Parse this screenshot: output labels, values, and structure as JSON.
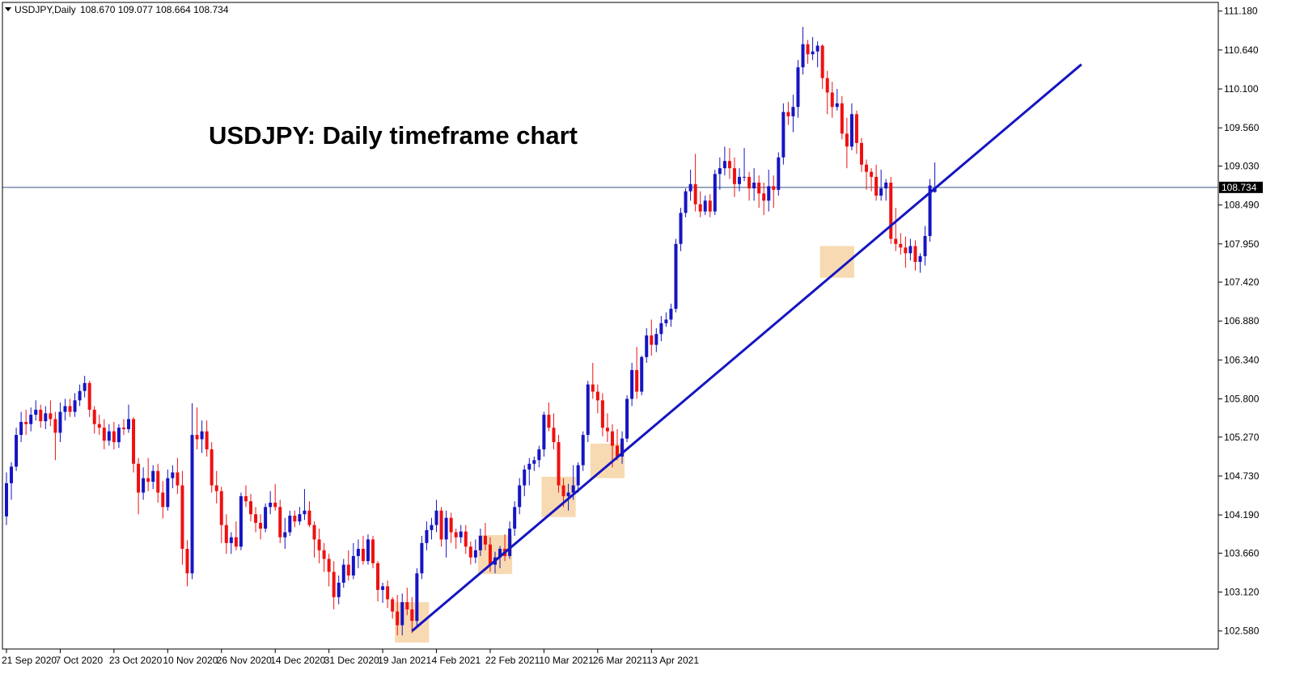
{
  "header": {
    "symbol": "USDJPY,Daily",
    "ohlc": "108.670 109.077 108.664 108.734"
  },
  "annotation": {
    "title": "USDJPY: Daily timeframe chart"
  },
  "colors": {
    "bull": "#1515c2",
    "bear": "#ee1111",
    "trendline": "#1515c2",
    "zone": "#f6d3a4",
    "current_price_line": "#33557e"
  },
  "chart_data": {
    "type": "candlestick",
    "title": "USDJPY: Daily timeframe chart",
    "symbol": "USDJPY",
    "timeframe": "Daily",
    "current_price": "108.734",
    "ylim": [
      102.33,
      111.3
    ],
    "y_ticks": [
      "111.180",
      "110.640",
      "110.100",
      "109.560",
      "109.030",
      "108.490",
      "107.950",
      "107.420",
      "106.880",
      "106.340",
      "105.800",
      "105.270",
      "104.730",
      "104.190",
      "103.660",
      "103.120",
      "102.580"
    ],
    "x_ticks": [
      "21 Sep 2020",
      "7 Oct 2020",
      "23 Oct 2020",
      "10 Nov 2020",
      "26 Nov 2020",
      "14 Dec 2020",
      "31 Dec 2020",
      "19 Jan 2021",
      "4 Feb 2021",
      "22 Feb 2021",
      "10 Mar 2021",
      "26 Mar 2021",
      "13 Apr 2021"
    ],
    "trendline": {
      "from": {
        "bar": 83,
        "price": 102.58
      },
      "to": {
        "bar": 220,
        "price": 110.44
      }
    },
    "zones": [
      {
        "from_bar": 80,
        "to_bar": 86,
        "low": 102.42,
        "high": 102.98
      },
      {
        "from_bar": 97,
        "to_bar": 103,
        "low": 103.37,
        "high": 103.91
      },
      {
        "from_bar": 110,
        "to_bar": 116,
        "low": 104.16,
        "high": 104.72
      },
      {
        "from_bar": 120,
        "to_bar": 126,
        "low": 104.7,
        "high": 105.18
      },
      {
        "from_bar": 167,
        "to_bar": 173,
        "low": 107.48,
        "high": 107.92
      }
    ],
    "candles": [
      [
        104.17,
        104.78,
        104.05,
        104.63
      ],
      [
        104.63,
        104.92,
        104.4,
        104.86
      ],
      [
        104.86,
        105.4,
        104.8,
        105.3
      ],
      [
        105.3,
        105.62,
        105.2,
        105.48
      ],
      [
        105.48,
        105.65,
        105.3,
        105.45
      ],
      [
        105.45,
        105.68,
        105.35,
        105.58
      ],
      [
        105.58,
        105.78,
        105.5,
        105.65
      ],
      [
        105.65,
        105.72,
        105.4,
        105.49
      ],
      [
        105.49,
        105.7,
        105.38,
        105.6
      ],
      [
        105.6,
        105.78,
        105.42,
        105.52
      ],
      [
        105.52,
        105.62,
        104.95,
        105.33
      ],
      [
        105.33,
        105.75,
        105.2,
        105.62
      ],
      [
        105.62,
        105.8,
        105.5,
        105.7
      ],
      [
        105.7,
        105.8,
        105.55,
        105.62
      ],
      [
        105.62,
        105.88,
        105.55,
        105.78
      ],
      [
        105.78,
        106.0,
        105.7,
        105.91
      ],
      [
        105.91,
        106.12,
        105.82,
        106.02
      ],
      [
        106.02,
        106.05,
        105.55,
        105.65
      ],
      [
        105.65,
        105.7,
        105.32,
        105.45
      ],
      [
        105.45,
        105.58,
        105.3,
        105.4
      ],
      [
        105.4,
        105.52,
        105.1,
        105.22
      ],
      [
        105.22,
        105.45,
        105.15,
        105.35
      ],
      [
        105.35,
        105.48,
        105.1,
        105.2
      ],
      [
        105.2,
        105.45,
        105.12,
        105.4
      ],
      [
        105.4,
        105.52,
        105.3,
        105.38
      ],
      [
        105.38,
        105.72,
        105.33,
        105.52
      ],
      [
        105.52,
        105.55,
        104.78,
        104.9
      ],
      [
        104.9,
        104.98,
        104.2,
        104.5
      ],
      [
        104.5,
        104.85,
        104.4,
        104.7
      ],
      [
        104.7,
        104.98,
        104.52,
        104.65
      ],
      [
        104.65,
        104.88,
        104.55,
        104.8
      ],
      [
        104.8,
        104.9,
        104.36,
        104.5
      ],
      [
        104.5,
        104.66,
        104.14,
        104.3
      ],
      [
        104.3,
        104.82,
        104.25,
        104.7
      ],
      [
        104.7,
        104.88,
        104.56,
        104.78
      ],
      [
        104.78,
        104.98,
        104.48,
        104.6
      ],
      [
        104.6,
        104.8,
        103.5,
        103.72
      ],
      [
        103.72,
        103.84,
        103.2,
        103.38
      ],
      [
        103.38,
        105.74,
        103.3,
        105.3
      ],
      [
        105.3,
        105.68,
        105.1,
        105.24
      ],
      [
        105.24,
        105.5,
        105.05,
        105.35
      ],
      [
        105.35,
        105.5,
        105.0,
        105.1
      ],
      [
        105.1,
        105.2,
        104.5,
        104.6
      ],
      [
        104.6,
        104.8,
        104.35,
        104.52
      ],
      [
        104.52,
        104.58,
        103.8,
        104.05
      ],
      [
        104.05,
        104.2,
        103.65,
        103.8
      ],
      [
        103.8,
        103.95,
        103.65,
        103.88
      ],
      [
        103.88,
        104.1,
        103.7,
        103.75
      ],
      [
        103.75,
        104.5,
        103.7,
        104.45
      ],
      [
        104.45,
        104.6,
        104.3,
        104.38
      ],
      [
        104.38,
        104.48,
        104.1,
        104.2
      ],
      [
        104.2,
        104.3,
        103.95,
        104.08
      ],
      [
        104.08,
        104.2,
        103.85,
        104.0
      ],
      [
        104.0,
        104.35,
        103.95,
        104.3
      ],
      [
        104.3,
        104.52,
        104.2,
        104.36
      ],
      [
        104.36,
        104.62,
        104.25,
        104.3
      ],
      [
        104.3,
        104.4,
        103.8,
        103.88
      ],
      [
        103.88,
        104.15,
        103.72,
        103.95
      ],
      [
        103.95,
        104.25,
        103.9,
        104.18
      ],
      [
        104.18,
        104.25,
        104.02,
        104.1
      ],
      [
        104.1,
        104.3,
        104.05,
        104.2
      ],
      [
        104.2,
        104.55,
        104.12,
        104.25
      ],
      [
        104.25,
        104.38,
        104.02,
        104.05
      ],
      [
        104.05,
        104.1,
        103.6,
        103.85
      ],
      [
        103.85,
        104.0,
        103.52,
        103.7
      ],
      [
        103.7,
        103.8,
        103.4,
        103.58
      ],
      [
        103.58,
        103.65,
        103.2,
        103.4
      ],
      [
        103.4,
        103.55,
        102.88,
        103.05
      ],
      [
        103.05,
        103.35,
        102.95,
        103.25
      ],
      [
        103.25,
        103.58,
        103.18,
        103.5
      ],
      [
        103.5,
        103.7,
        103.28,
        103.35
      ],
      [
        103.35,
        103.8,
        103.3,
        103.62
      ],
      [
        103.62,
        103.85,
        103.45,
        103.72
      ],
      [
        103.72,
        103.9,
        103.5,
        103.55
      ],
      [
        103.55,
        103.92,
        103.5,
        103.85
      ],
      [
        103.85,
        103.9,
        103.45,
        103.52
      ],
      [
        103.52,
        103.55,
        102.99,
        103.15
      ],
      [
        103.15,
        103.25,
        102.97,
        103.2
      ],
      [
        103.2,
        103.28,
        102.9,
        103.02
      ],
      [
        103.02,
        103.05,
        102.75,
        102.85
      ],
      [
        102.85,
        103.08,
        102.52,
        102.66
      ],
      [
        102.66,
        103.1,
        102.52,
        102.98
      ],
      [
        102.98,
        103.18,
        102.8,
        102.88
      ],
      [
        102.88,
        103.05,
        102.55,
        102.72
      ],
      [
        102.72,
        103.45,
        102.65,
        103.38
      ],
      [
        103.38,
        103.9,
        103.3,
        103.8
      ],
      [
        103.8,
        104.1,
        103.7,
        103.98
      ],
      [
        103.98,
        104.15,
        103.85,
        104.05
      ],
      [
        104.05,
        104.4,
        103.95,
        104.25
      ],
      [
        104.25,
        104.3,
        103.75,
        103.85
      ],
      [
        103.85,
        104.25,
        103.6,
        104.15
      ],
      [
        104.15,
        104.22,
        103.8,
        103.95
      ],
      [
        103.95,
        104.0,
        103.72,
        103.88
      ],
      [
        103.88,
        104.05,
        103.8,
        103.96
      ],
      [
        103.96,
        104.05,
        103.65,
        103.75
      ],
      [
        103.75,
        103.82,
        103.5,
        103.6
      ],
      [
        103.6,
        103.85,
        103.52,
        103.7
      ],
      [
        103.7,
        104.0,
        103.62,
        103.9
      ],
      [
        103.9,
        104.08,
        103.7,
        103.78
      ],
      [
        103.78,
        103.88,
        103.4,
        103.5
      ],
      [
        103.5,
        103.68,
        103.38,
        103.6
      ],
      [
        103.6,
        103.76,
        103.45,
        103.72
      ],
      [
        103.72,
        103.92,
        103.55,
        103.62
      ],
      [
        103.62,
        104.1,
        103.58,
        104.0
      ],
      [
        104.0,
        104.38,
        103.9,
        104.3
      ],
      [
        104.3,
        104.7,
        104.2,
        104.6
      ],
      [
        104.6,
        104.88,
        104.45,
        104.82
      ],
      [
        104.82,
        104.98,
        104.6,
        104.9
      ],
      [
        104.9,
        105.0,
        104.8,
        104.95
      ],
      [
        104.95,
        105.15,
        104.85,
        105.1
      ],
      [
        105.1,
        105.62,
        105.0,
        105.58
      ],
      [
        105.58,
        105.75,
        105.35,
        105.4
      ],
      [
        105.4,
        105.6,
        105.1,
        105.2
      ],
      [
        105.2,
        105.3,
        104.5,
        104.6
      ],
      [
        104.6,
        104.7,
        104.3,
        104.45
      ],
      [
        104.45,
        104.62,
        104.25,
        104.5
      ],
      [
        104.5,
        104.88,
        104.4,
        104.6
      ],
      [
        104.6,
        104.92,
        104.5,
        104.88
      ],
      [
        104.88,
        105.35,
        104.8,
        105.3
      ],
      [
        105.3,
        106.05,
        105.2,
        106.0
      ],
      [
        106.0,
        106.3,
        105.8,
        105.9
      ],
      [
        105.9,
        106.0,
        105.6,
        105.78
      ],
      [
        105.78,
        105.88,
        105.28,
        105.4
      ],
      [
        105.4,
        105.6,
        105.2,
        105.35
      ],
      [
        105.35,
        105.45,
        104.85,
        105.15
      ],
      [
        105.15,
        105.38,
        104.95,
        105.0
      ],
      [
        105.0,
        105.35,
        104.9,
        105.25
      ],
      [
        105.25,
        105.85,
        105.2,
        105.8
      ],
      [
        105.8,
        106.3,
        105.7,
        106.2
      ],
      [
        106.2,
        106.52,
        105.8,
        105.9
      ],
      [
        105.9,
        106.4,
        105.85,
        106.38
      ],
      [
        106.38,
        106.78,
        106.3,
        106.68
      ],
      [
        106.68,
        106.9,
        106.4,
        106.55
      ],
      [
        106.55,
        106.78,
        106.45,
        106.7
      ],
      [
        106.7,
        106.95,
        106.6,
        106.85
      ],
      [
        106.85,
        107.0,
        106.8,
        106.9
      ],
      [
        106.9,
        107.12,
        106.8,
        107.05
      ],
      [
        107.05,
        108.02,
        107.0,
        107.95
      ],
      [
        107.95,
        108.45,
        107.85,
        108.38
      ],
      [
        108.38,
        108.72,
        108.32,
        108.68
      ],
      [
        108.68,
        108.98,
        108.55,
        108.78
      ],
      [
        108.78,
        109.2,
        108.4,
        108.5
      ],
      [
        108.5,
        108.68,
        108.32,
        108.4
      ],
      [
        108.4,
        108.62,
        108.35,
        108.55
      ],
      [
        108.55,
        108.64,
        108.32,
        108.4
      ],
      [
        108.4,
        108.98,
        108.35,
        108.92
      ],
      [
        108.92,
        109.15,
        108.7,
        109.0
      ],
      [
        109.0,
        109.3,
        108.9,
        109.1
      ],
      [
        109.1,
        109.28,
        108.85,
        109.0
      ],
      [
        109.0,
        109.15,
        108.6,
        108.78
      ],
      [
        108.78,
        109.0,
        108.68,
        108.88
      ],
      [
        108.88,
        109.28,
        108.82,
        108.88
      ],
      [
        108.88,
        108.95,
        108.55,
        108.72
      ],
      [
        108.72,
        109.0,
        108.55,
        108.8
      ],
      [
        108.8,
        108.9,
        108.45,
        108.65
      ],
      [
        108.65,
        108.8,
        108.35,
        108.55
      ],
      [
        108.55,
        108.98,
        108.4,
        108.75
      ],
      [
        108.75,
        108.9,
        108.45,
        108.7
      ],
      [
        108.7,
        109.22,
        108.62,
        109.15
      ],
      [
        109.15,
        109.9,
        109.05,
        109.78
      ],
      [
        109.78,
        109.92,
        109.6,
        109.72
      ],
      [
        109.72,
        110.02,
        109.5,
        109.85
      ],
      [
        109.85,
        110.5,
        109.7,
        110.4
      ],
      [
        110.4,
        110.96,
        110.3,
        110.72
      ],
      [
        110.72,
        110.78,
        110.45,
        110.58
      ],
      [
        110.58,
        110.82,
        110.5,
        110.62
      ],
      [
        110.62,
        110.76,
        110.4,
        110.7
      ],
      [
        110.7,
        110.72,
        110.1,
        110.25
      ],
      [
        110.25,
        110.35,
        109.75,
        110.05
      ],
      [
        110.05,
        110.2,
        109.7,
        109.85
      ],
      [
        109.85,
        110.1,
        109.8,
        109.9
      ],
      [
        109.9,
        110.0,
        109.4,
        109.48
      ],
      [
        109.48,
        109.7,
        109.0,
        109.3
      ],
      [
        109.3,
        109.9,
        109.25,
        109.75
      ],
      [
        109.75,
        109.8,
        109.2,
        109.35
      ],
      [
        109.35,
        109.42,
        108.95,
        109.05
      ],
      [
        109.05,
        109.12,
        108.7,
        108.95
      ],
      [
        108.95,
        109.0,
        108.68,
        108.88
      ],
      [
        108.88,
        109.05,
        108.55,
        108.62
      ],
      [
        108.62,
        108.98,
        108.55,
        108.72
      ],
      [
        108.72,
        108.85,
        108.55,
        108.8
      ],
      [
        108.8,
        108.88,
        107.95,
        108.02
      ],
      [
        108.02,
        108.45,
        107.85,
        107.95
      ],
      [
        107.95,
        108.1,
        107.8,
        107.9
      ],
      [
        107.9,
        108.05,
        107.62,
        107.82
      ],
      [
        107.82,
        108.02,
        107.72,
        107.92
      ],
      [
        107.92,
        108.0,
        107.58,
        107.7
      ],
      [
        107.7,
        107.82,
        107.55,
        107.78
      ],
      [
        107.78,
        108.2,
        107.65,
        108.06
      ],
      [
        108.06,
        108.85,
        107.98,
        108.76
      ],
      [
        108.67,
        109.08,
        108.66,
        108.73
      ]
    ]
  }
}
